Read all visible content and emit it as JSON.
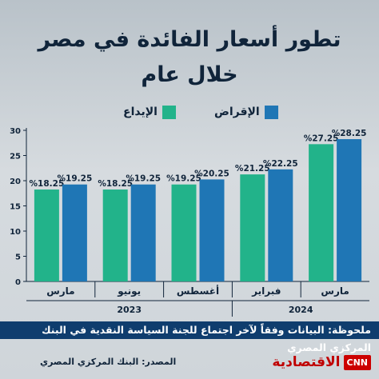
{
  "title_line1": "تطور أسعار الفائدة في مصر",
  "title_line2": "خلال عام",
  "note": "ملحوظة: البيانات وفقاً لآخر اجتماع للجنة السياسة النقدية في البنك المركزي المصري",
  "source": "المصدر: البنك المركزي المصري",
  "logo_text": "الاقتصادية",
  "logo_badge": "CNN",
  "colors": {
    "deposit": "#22b38a",
    "lending": "#1f76b5",
    "axis": "#10243a"
  },
  "chart_data": {
    "type": "bar",
    "categories": [
      "مارس",
      "يونيو",
      "أغسطس",
      "فبراير",
      "مارس"
    ],
    "years": [
      {
        "label": "2023",
        "from": 0,
        "to": 2
      },
      {
        "label": "2024",
        "from": 3,
        "to": 4
      }
    ],
    "series": [
      {
        "name": "الإيداع",
        "values": [
          18.25,
          18.25,
          19.25,
          21.25,
          27.25
        ],
        "labels": [
          "%18.25",
          "%18.25",
          "%19.25",
          "%21.25",
          "%27.25"
        ]
      },
      {
        "name": "الإقراض",
        "values": [
          19.25,
          19.25,
          20.25,
          22.25,
          28.25
        ],
        "labels": [
          "%19.25",
          "%19.25",
          "%20.25",
          "%22.25",
          "%28.25"
        ]
      }
    ],
    "ylim": [
      0,
      30
    ],
    "yticks": [
      0,
      5,
      10,
      15,
      20,
      25,
      30
    ],
    "grid": false,
    "legend": "top-center"
  }
}
